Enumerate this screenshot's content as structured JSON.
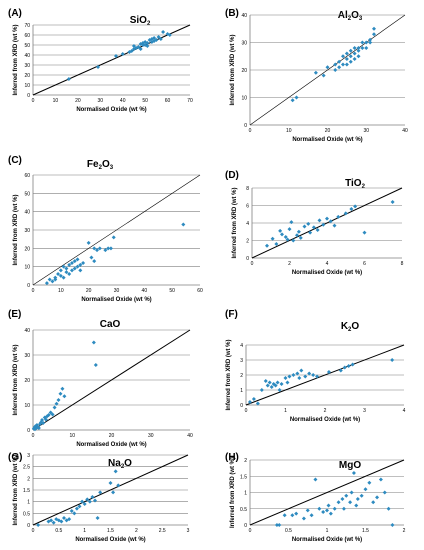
{
  "chart_data": [
    {
      "type": "scatter",
      "panel_label": "(A)",
      "title": "SiO",
      "title_sub": "2",
      "xlabel": "Normalised Oxide (wt %)",
      "ylabel": "Inferred from XRD (wt %)",
      "xlim": [
        0,
        70
      ],
      "ylim": [
        0,
        70
      ],
      "xticks": [
        0,
        10,
        20,
        30,
        40,
        50,
        60,
        70
      ],
      "yticks": [
        0,
        10,
        20,
        30,
        40,
        50,
        60,
        70
      ],
      "grid": true,
      "ref_line": [
        [
          0,
          0
        ],
        [
          70,
          70
        ]
      ],
      "points": [
        [
          16,
          16
        ],
        [
          29,
          28
        ],
        [
          37,
          39
        ],
        [
          40,
          41
        ],
        [
          43,
          43
        ],
        [
          44,
          44
        ],
        [
          45,
          46
        ],
        [
          45,
          49
        ],
        [
          46,
          47
        ],
        [
          47,
          48
        ],
        [
          48,
          51
        ],
        [
          48,
          46
        ],
        [
          49,
          52
        ],
        [
          49,
          50
        ],
        [
          50,
          50
        ],
        [
          50,
          53
        ],
        [
          51,
          49
        ],
        [
          51,
          52
        ],
        [
          52,
          55
        ],
        [
          53,
          53
        ],
        [
          53,
          56
        ],
        [
          54,
          57
        ],
        [
          54,
          54
        ],
        [
          55,
          55
        ],
        [
          56,
          58
        ],
        [
          57,
          56
        ],
        [
          58,
          63
        ],
        [
          60,
          61
        ],
        [
          61,
          60
        ]
      ]
    },
    {
      "type": "scatter",
      "panel_label": "(B)",
      "title": "Al",
      "title_sub": "2",
      "title_mid": "O",
      "title_sub2": "3",
      "xlabel": "Normalised Oxide (wt %)",
      "ylabel": "Inferred from XRD (wt %)",
      "xlim": [
        0,
        40
      ],
      "ylim": [
        0,
        40
      ],
      "xticks": [
        0,
        10,
        20,
        30,
        40
      ],
      "yticks": [
        0,
        10,
        20,
        30,
        40
      ],
      "grid": true,
      "ref_line": [
        [
          0,
          0
        ],
        [
          40,
          40
        ]
      ],
      "points": [
        [
          11,
          9
        ],
        [
          12,
          10
        ],
        [
          17,
          19
        ],
        [
          19,
          18
        ],
        [
          20,
          21
        ],
        [
          22,
          22
        ],
        [
          22,
          20
        ],
        [
          23,
          23
        ],
        [
          23,
          21
        ],
        [
          24,
          25
        ],
        [
          24,
          22
        ],
        [
          25,
          26
        ],
        [
          25,
          24
        ],
        [
          25,
          22
        ],
        [
          26,
          27
        ],
        [
          26,
          25
        ],
        [
          26,
          23
        ],
        [
          27,
          28
        ],
        [
          27,
          26
        ],
        [
          27,
          24
        ],
        [
          28,
          28
        ],
        [
          28,
          27
        ],
        [
          28,
          25
        ],
        [
          29,
          30
        ],
        [
          29,
          28
        ],
        [
          30,
          30
        ],
        [
          30,
          28
        ],
        [
          31,
          31
        ],
        [
          31,
          30
        ],
        [
          32,
          35
        ],
        [
          32,
          33
        ]
      ]
    },
    {
      "type": "scatter",
      "panel_label": "(C)",
      "title": "Fe",
      "title_sub": "2",
      "title_mid": "O",
      "title_sub2": "3",
      "xlabel": "Normalised Oxide (wt %)",
      "ylabel": "Inferred from XRD (wt %)",
      "xlim": [
        0,
        60
      ],
      "ylim": [
        0,
        60
      ],
      "xticks": [
        0,
        10,
        20,
        30,
        40,
        50,
        60
      ],
      "yticks": [
        0,
        10,
        20,
        30,
        40,
        50,
        60
      ],
      "grid": true,
      "ref_line": [
        [
          0,
          0
        ],
        [
          60,
          60
        ]
      ],
      "points": [
        [
          5,
          1
        ],
        [
          6,
          3
        ],
        [
          7,
          2
        ],
        [
          8,
          4
        ],
        [
          8,
          3
        ],
        [
          9,
          6
        ],
        [
          10,
          5
        ],
        [
          10,
          8
        ],
        [
          11,
          4
        ],
        [
          11,
          10
        ],
        [
          12,
          7
        ],
        [
          12,
          9
        ],
        [
          13,
          6
        ],
        [
          13,
          11
        ],
        [
          14,
          8
        ],
        [
          14,
          12
        ],
        [
          15,
          9
        ],
        [
          15,
          13
        ],
        [
          16,
          10
        ],
        [
          16,
          14
        ],
        [
          17,
          8
        ],
        [
          17,
          11
        ],
        [
          18,
          12
        ],
        [
          20,
          23
        ],
        [
          21,
          15
        ],
        [
          22,
          20
        ],
        [
          22,
          13
        ],
        [
          23,
          19
        ],
        [
          24,
          20
        ],
        [
          26,
          19
        ],
        [
          27,
          20
        ],
        [
          28,
          20
        ],
        [
          29,
          26
        ],
        [
          54,
          33
        ]
      ]
    },
    {
      "type": "scatter",
      "panel_label": "(D)",
      "title": "TiO",
      "title_sub": "2",
      "xlabel": "Normalised Oxide (wt %)",
      "ylabel": "Inferred from XRD (wt %)",
      "xlim": [
        0,
        8
      ],
      "ylim": [
        0,
        8
      ],
      "xticks": [
        0,
        2,
        4,
        6,
        8
      ],
      "yticks": [
        0,
        2,
        4,
        6,
        8
      ],
      "grid": true,
      "ref_line": [
        [
          0,
          0
        ],
        [
          8,
          8
        ]
      ],
      "points": [
        [
          0.8,
          1.4
        ],
        [
          1.1,
          2.2
        ],
        [
          1.3,
          1.6
        ],
        [
          1.5,
          3.1
        ],
        [
          1.6,
          2.7
        ],
        [
          1.8,
          2.4
        ],
        [
          1.9,
          2.1
        ],
        [
          2.0,
          3.3
        ],
        [
          2.1,
          4.1
        ],
        [
          2.2,
          2.0
        ],
        [
          2.4,
          2.6
        ],
        [
          2.5,
          3.0
        ],
        [
          2.6,
          2.3
        ],
        [
          2.8,
          3.6
        ],
        [
          3.0,
          3.9
        ],
        [
          3.1,
          2.9
        ],
        [
          3.3,
          3.5
        ],
        [
          3.5,
          3.2
        ],
        [
          3.6,
          4.3
        ],
        [
          3.8,
          3.8
        ],
        [
          4.0,
          4.5
        ],
        [
          4.2,
          4.2
        ],
        [
          4.4,
          3.7
        ],
        [
          4.6,
          4.7
        ],
        [
          5.0,
          5.1
        ],
        [
          5.3,
          5.6
        ],
        [
          5.5,
          5.9
        ],
        [
          6.0,
          2.9
        ],
        [
          7.5,
          6.4
        ]
      ]
    },
    {
      "type": "scatter",
      "panel_label": "(E)",
      "title": "CaO",
      "xlabel": "Normalised Oxide (wt %)",
      "ylabel": "Inferred from XRD (wt %)",
      "xlim": [
        0,
        40
      ],
      "ylim": [
        0,
        40
      ],
      "xticks": [
        0,
        10,
        20,
        30,
        40
      ],
      "yticks": [
        0,
        10,
        20,
        30,
        40
      ],
      "grid": true,
      "ref_line": [
        [
          0,
          0
        ],
        [
          40,
          40
        ]
      ],
      "points": [
        [
          0.2,
          0.5
        ],
        [
          0.4,
          1.0
        ],
        [
          0.5,
          0.3
        ],
        [
          0.6,
          1.5
        ],
        [
          0.8,
          0.7
        ],
        [
          1.0,
          2.0
        ],
        [
          1.2,
          1.2
        ],
        [
          1.5,
          0.8
        ],
        [
          1.8,
          2.4
        ],
        [
          2.0,
          3.0
        ],
        [
          2.3,
          4.0
        ],
        [
          2.6,
          2.8
        ],
        [
          3.0,
          5.0
        ],
        [
          3.3,
          4.2
        ],
        [
          3.6,
          5.5
        ],
        [
          4.0,
          6.0
        ],
        [
          4.5,
          7.0
        ],
        [
          5.0,
          6.2
        ],
        [
          5.5,
          9.0
        ],
        [
          6.0,
          10.5
        ],
        [
          6.5,
          12.0
        ],
        [
          7.0,
          14.5
        ],
        [
          7.5,
          16.5
        ],
        [
          8.0,
          13.5
        ],
        [
          15.5,
          35.0
        ],
        [
          16.0,
          26.0
        ]
      ]
    },
    {
      "type": "scatter",
      "panel_label": "(F)",
      "title": "K",
      "title_sub": "2",
      "title_mid": "O",
      "xlabel": "Normalised Oxide (wt %)",
      "ylabel": "Inferred from XRD (wt %)",
      "xlim": [
        0,
        4
      ],
      "ylim": [
        0,
        4
      ],
      "xticks": [
        0,
        1,
        2,
        3,
        4
      ],
      "yticks": [
        0,
        1,
        2,
        3,
        4
      ],
      "grid": true,
      "ref_line": [
        [
          0,
          0
        ],
        [
          4,
          4
        ]
      ],
      "points": [
        [
          0.1,
          0.2
        ],
        [
          0.2,
          0.4
        ],
        [
          0.3,
          0.1
        ],
        [
          0.4,
          1.0
        ],
        [
          0.5,
          1.6
        ],
        [
          0.55,
          1.3
        ],
        [
          0.6,
          1.5
        ],
        [
          0.65,
          1.2
        ],
        [
          0.7,
          1.4
        ],
        [
          0.75,
          1.3
        ],
        [
          0.8,
          1.5
        ],
        [
          0.85,
          1.0
        ],
        [
          0.9,
          1.4
        ],
        [
          1.0,
          1.8
        ],
        [
          1.05,
          1.5
        ],
        [
          1.1,
          1.9
        ],
        [
          1.2,
          2.0
        ],
        [
          1.3,
          2.1
        ],
        [
          1.35,
          1.8
        ],
        [
          1.4,
          2.3
        ],
        [
          1.5,
          1.9
        ],
        [
          1.6,
          2.1
        ],
        [
          1.7,
          2.0
        ],
        [
          1.8,
          1.9
        ],
        [
          2.1,
          2.2
        ],
        [
          2.4,
          2.3
        ],
        [
          2.5,
          2.5
        ],
        [
          2.6,
          2.6
        ],
        [
          2.7,
          2.7
        ],
        [
          3.7,
          3.0
        ]
      ]
    },
    {
      "type": "scatter",
      "panel_label": "(G)",
      "title": "Na",
      "title_sub": "2",
      "title_mid": "O",
      "xlabel": "Normalised Oxide (wt %)",
      "ylabel": "Inferred from XRD (wt %)",
      "xlim": [
        0,
        3
      ],
      "ylim": [
        0,
        3
      ],
      "xticks": [
        0,
        0.5,
        1,
        1.5,
        2,
        2.5,
        3
      ],
      "xticklabels": [
        "0",
        "0.5",
        "1",
        "1.5",
        "2",
        "2.5",
        "3"
      ],
      "yticks": [
        0,
        0.5,
        1,
        1.5,
        2,
        2.5,
        3
      ],
      "yticklabels": [
        "0",
        "0.5",
        "1",
        "1.5",
        "2",
        "2.5",
        "3"
      ],
      "grid": true,
      "ref_line": [
        [
          0,
          0
        ],
        [
          3,
          3
        ]
      ],
      "points": [
        [
          0.1,
          0.0
        ],
        [
          0.3,
          0.15
        ],
        [
          0.35,
          0.2
        ],
        [
          0.4,
          0.1
        ],
        [
          0.45,
          0.25
        ],
        [
          0.5,
          0.2
        ],
        [
          0.55,
          0.15
        ],
        [
          0.6,
          0.3
        ],
        [
          0.65,
          0.2
        ],
        [
          0.7,
          0.25
        ],
        [
          0.75,
          0.6
        ],
        [
          0.8,
          0.5
        ],
        [
          0.85,
          0.7
        ],
        [
          0.9,
          0.8
        ],
        [
          0.95,
          1.0
        ],
        [
          1.0,
          0.9
        ],
        [
          1.05,
          1.1
        ],
        [
          1.1,
          1.0
        ],
        [
          1.15,
          1.2
        ],
        [
          1.2,
          1.05
        ],
        [
          1.25,
          0.3
        ],
        [
          1.3,
          1.4
        ],
        [
          1.5,
          1.8
        ],
        [
          1.55,
          1.4
        ],
        [
          1.6,
          2.3
        ],
        [
          1.65,
          1.7
        ]
      ]
    },
    {
      "type": "scatter",
      "panel_label": "(H)",
      "title": "MgO",
      "xlabel": "Normalised Oxide (wt %)",
      "ylabel": "Inferred from XRD (wt %)",
      "xlim": [
        0,
        2
      ],
      "ylim": [
        0,
        2
      ],
      "xticks": [
        0,
        0.5,
        1,
        1.5,
        2
      ],
      "xticklabels": [
        "0",
        "0.5",
        "1",
        "1.5",
        "2"
      ],
      "yticks": [
        0,
        0.5,
        1,
        1.5,
        2
      ],
      "yticklabels": [
        "0",
        "0.5",
        "1",
        "1.5",
        "2"
      ],
      "grid": true,
      "ref_line": [
        [
          0,
          0
        ],
        [
          2,
          2
        ]
      ],
      "points": [
        [
          0.35,
          0.0
        ],
        [
          0.38,
          0.0
        ],
        [
          0.45,
          0.3
        ],
        [
          0.55,
          0.3
        ],
        [
          0.6,
          0.35
        ],
        [
          0.7,
          0.2
        ],
        [
          0.75,
          0.45
        ],
        [
          0.8,
          0.3
        ],
        [
          0.85,
          1.4
        ],
        [
          0.9,
          0.5
        ],
        [
          0.95,
          0.4
        ],
        [
          1.0,
          0.45
        ],
        [
          1.02,
          0.6
        ],
        [
          1.05,
          0.35
        ],
        [
          1.1,
          0.5
        ],
        [
          1.15,
          0.7
        ],
        [
          1.2,
          0.8
        ],
        [
          1.22,
          0.5
        ],
        [
          1.25,
          0.9
        ],
        [
          1.3,
          0.7
        ],
        [
          1.32,
          1.0
        ],
        [
          1.35,
          1.6
        ],
        [
          1.38,
          0.6
        ],
        [
          1.4,
          0.8
        ],
        [
          1.45,
          0.9
        ],
        [
          1.5,
          1.1
        ],
        [
          1.55,
          1.3
        ],
        [
          1.6,
          0.7
        ],
        [
          1.65,
          0.85
        ],
        [
          1.7,
          1.4
        ],
        [
          1.75,
          1.0
        ],
        [
          1.8,
          0.5
        ],
        [
          1.85,
          0.0
        ]
      ]
    }
  ]
}
